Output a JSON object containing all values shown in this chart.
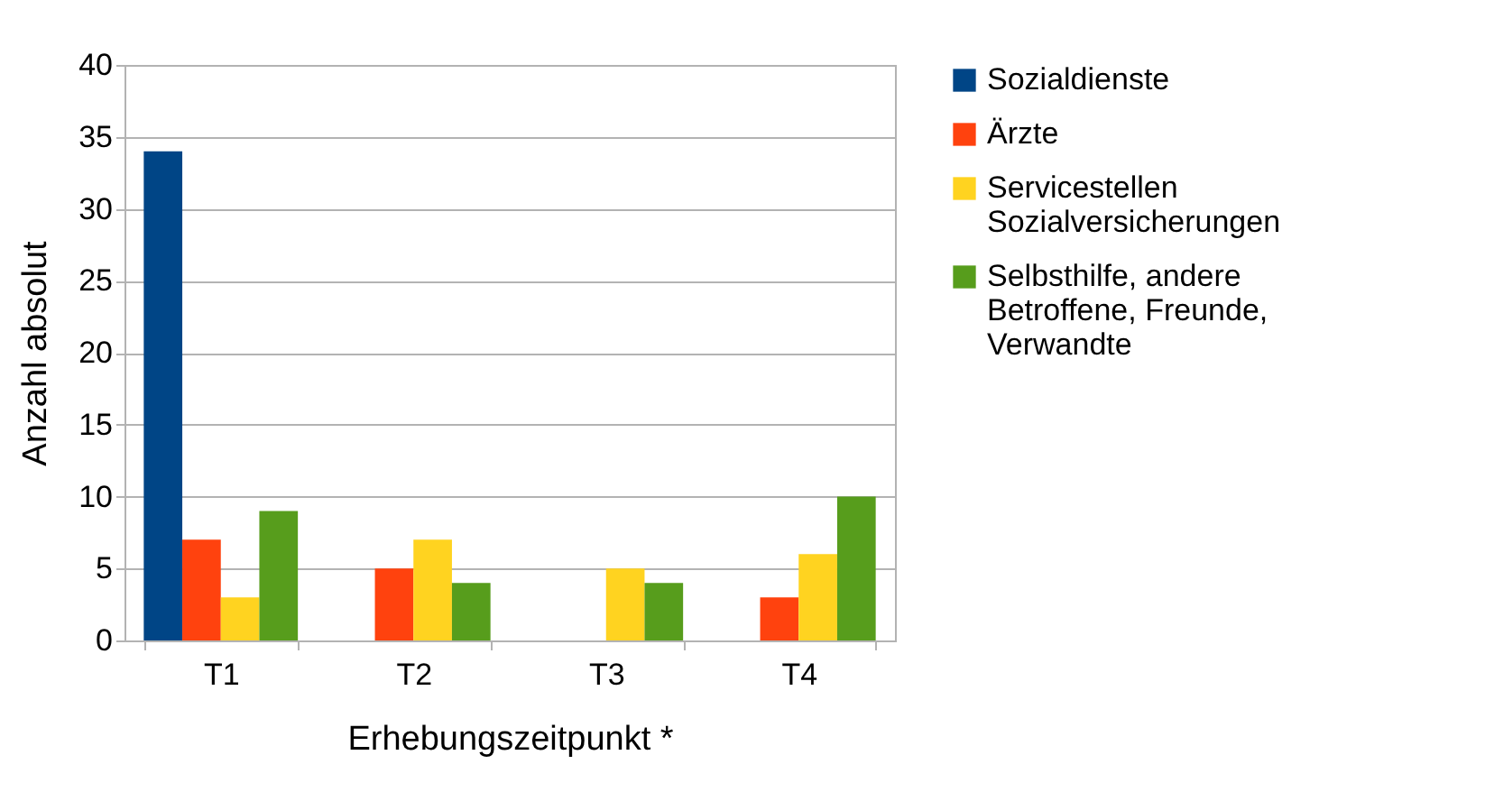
{
  "chart_data": {
    "type": "bar",
    "xlabel": "Erhebungszeitpunkt *",
    "ylabel": "Anzahl absolut",
    "categories": [
      "T1",
      "T2",
      "T3",
      "T4"
    ],
    "series": [
      {
        "name": "Sozialdienste",
        "color": "#004586",
        "values": [
          34,
          0,
          0,
          0
        ]
      },
      {
        "name": "Ärzte",
        "color": "#ff420e",
        "values": [
          7,
          5,
          0,
          3
        ]
      },
      {
        "name": "Servicestellen Sozialversicherungen",
        "color": "#ffd320",
        "values": [
          3,
          7,
          5,
          6
        ]
      },
      {
        "name": "Selbsthilfe, andere Betroffene, Freunde, Verwandte",
        "color": "#579d1c",
        "values": [
          9,
          4,
          4,
          10
        ]
      }
    ],
    "ylim": [
      0,
      40
    ],
    "yticks": [
      0,
      5,
      10,
      15,
      20,
      25,
      30,
      35,
      40
    ],
    "grid": "y",
    "legend": "right"
  }
}
